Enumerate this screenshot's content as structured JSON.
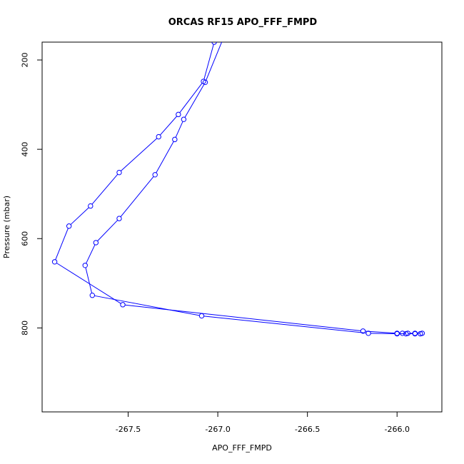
{
  "chart_data": {
    "type": "line",
    "title": "ORCAS RF15 APO_FFF_FMPD",
    "xlabel": "APO_FFF_FMPD",
    "ylabel": "Pressure (mbar)",
    "xlim": [
      -267.98,
      -265.75
    ],
    "ylim": [
      988,
      160
    ],
    "y_inverted": true,
    "grid": false,
    "xticks": [
      {
        "value": -267.5,
        "label": "-267.5"
      },
      {
        "value": -267.0,
        "label": "-267.0"
      },
      {
        "value": -266.5,
        "label": "-266.5"
      },
      {
        "value": -266.0,
        "label": "-266.0"
      }
    ],
    "yticks": [
      {
        "value": 200,
        "label": "200"
      },
      {
        "value": 400,
        "label": "400"
      },
      {
        "value": 600,
        "label": "600"
      },
      {
        "value": 800,
        "label": "800"
      }
    ],
    "series": [
      {
        "color": "#0000ff",
        "marker": "open-circle",
        "points": [
          {
            "x": -267.02,
            "y": 160
          },
          {
            "x": -267.08,
            "y": 248
          },
          {
            "x": -267.22,
            "y": 322
          },
          {
            "x": -267.33,
            "y": 372
          },
          {
            "x": -267.55,
            "y": 452
          },
          {
            "x": -267.71,
            "y": 527
          },
          {
            "x": -267.83,
            "y": 572
          },
          {
            "x": -267.91,
            "y": 652
          },
          {
            "x": -267.53,
            "y": 748
          },
          {
            "x": -266.19,
            "y": 807
          },
          {
            "x": -266.0,
            "y": 812
          },
          {
            "x": -265.97,
            "y": 812
          },
          {
            "x": -265.94,
            "y": 812
          },
          {
            "x": -265.9,
            "y": 812
          },
          {
            "x": -265.86,
            "y": 812
          }
        ]
      },
      {
        "color": "#0000ff",
        "marker": "open-circle",
        "points": [
          {
            "x": -266.97,
            "y": 152
          },
          {
            "x": -267.07,
            "y": 250
          },
          {
            "x": -267.19,
            "y": 333
          },
          {
            "x": -267.24,
            "y": 378
          },
          {
            "x": -267.35,
            "y": 457
          },
          {
            "x": -267.55,
            "y": 555
          },
          {
            "x": -267.68,
            "y": 609
          },
          {
            "x": -267.74,
            "y": 660
          },
          {
            "x": -267.7,
            "y": 727
          },
          {
            "x": -267.09,
            "y": 773
          },
          {
            "x": -266.16,
            "y": 812
          },
          {
            "x": -266.0,
            "y": 813
          },
          {
            "x": -265.95,
            "y": 813
          },
          {
            "x": -265.9,
            "y": 813
          },
          {
            "x": -265.87,
            "y": 813
          }
        ]
      }
    ]
  }
}
